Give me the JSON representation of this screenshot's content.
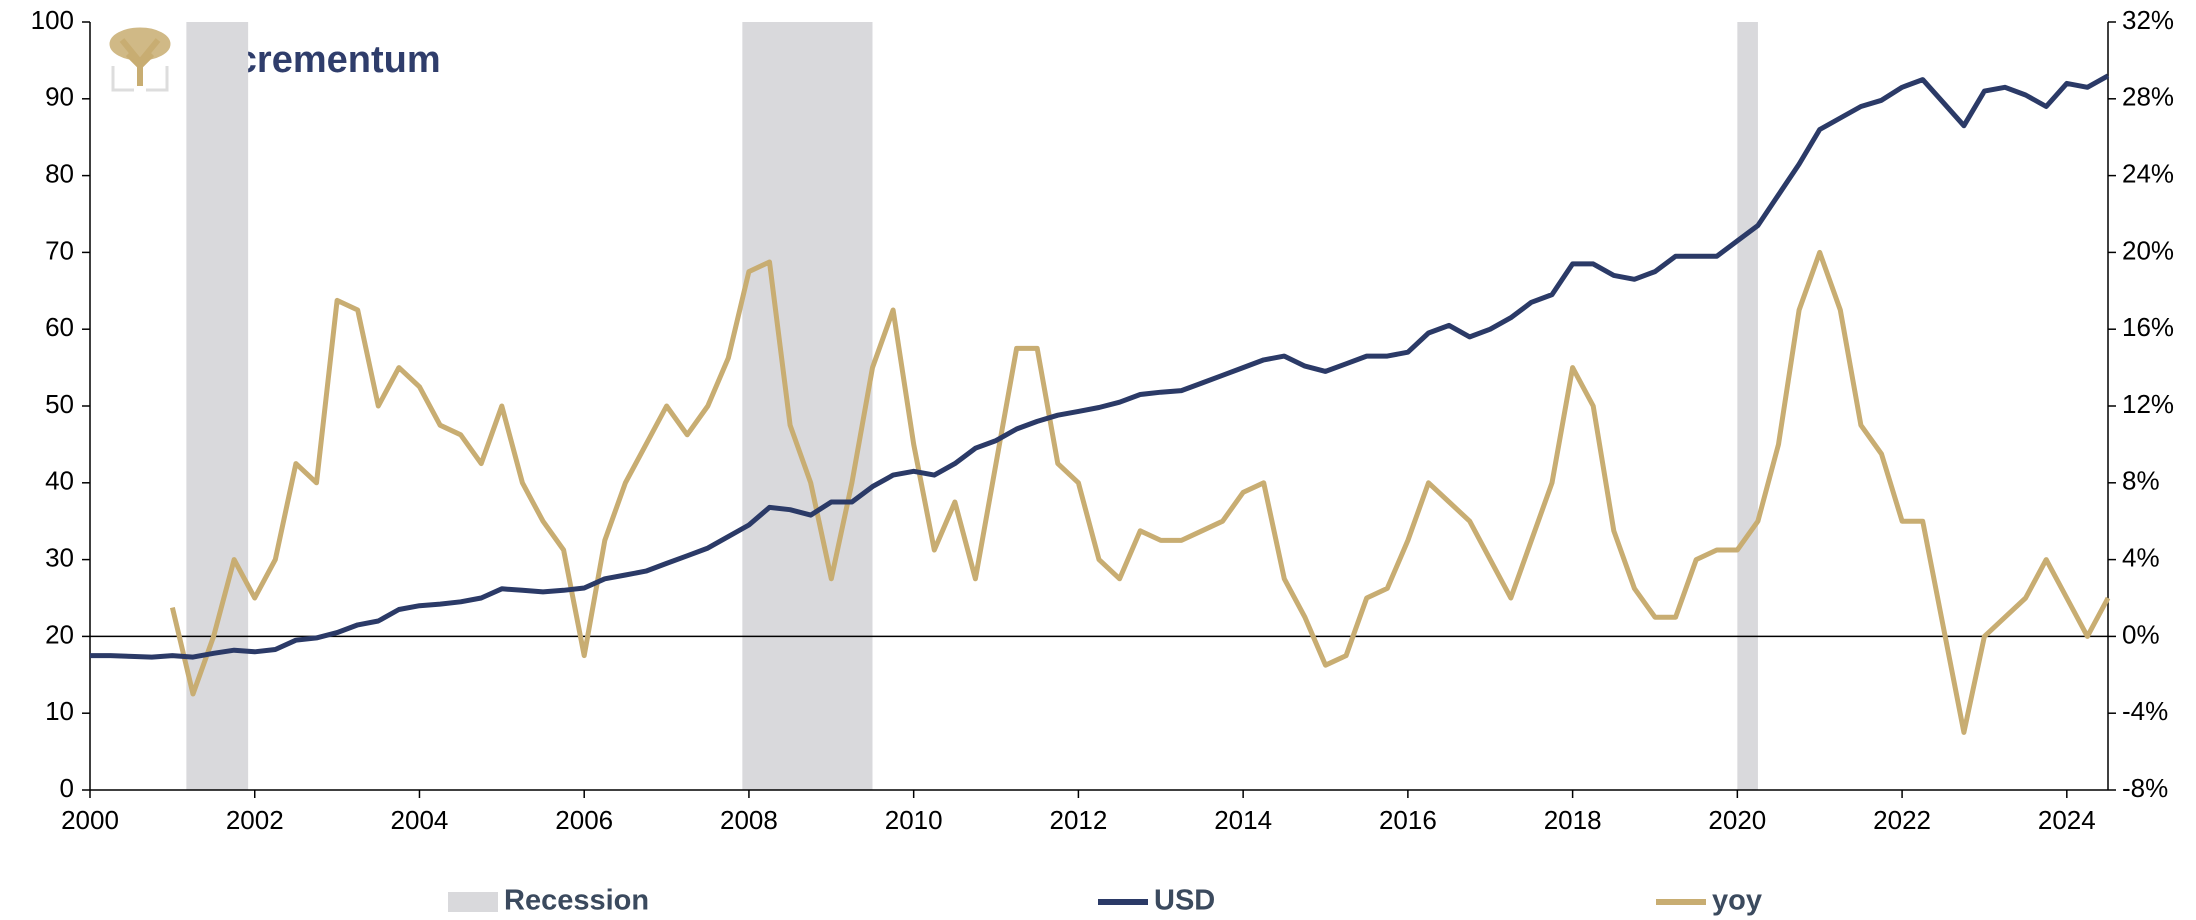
{
  "logo": "incrementum",
  "chart_data": {
    "type": "line",
    "xlim": [
      2000,
      2024.5
    ],
    "xticks": [
      2000,
      2002,
      2004,
      2006,
      2008,
      2010,
      2012,
      2014,
      2016,
      2018,
      2020,
      2022,
      2024
    ],
    "ylim": [
      0,
      100
    ],
    "yticks": [
      0,
      10,
      20,
      30,
      40,
      50,
      60,
      70,
      80,
      90,
      100
    ],
    "y2lim": [
      -8,
      32
    ],
    "y2ticks": [
      {
        "value": -8,
        "label": "-8%"
      },
      {
        "value": -4,
        "label": "-4%"
      },
      {
        "value": 0,
        "label": "0%"
      },
      {
        "value": 4,
        "label": "4%"
      },
      {
        "value": 8,
        "label": "8%"
      },
      {
        "value": 12,
        "label": "12%"
      },
      {
        "value": 16,
        "label": "16%"
      },
      {
        "value": 20,
        "label": "20%"
      },
      {
        "value": 24,
        "label": "24%"
      },
      {
        "value": 28,
        "label": "28%"
      },
      {
        "value": 32,
        "label": "32%"
      }
    ],
    "recession": {
      "name": "Recession",
      "color": "#d9d9dc",
      "periods": [
        [
          2001.17,
          2001.92
        ],
        [
          2007.92,
          2009.5
        ],
        [
          2020.0,
          2020.25
        ]
      ]
    },
    "series": [
      {
        "name": "USD",
        "color": "#2b3a67",
        "axis": "y",
        "x": [
          2000,
          2000.25,
          2000.5,
          2000.75,
          2001,
          2001.25,
          2001.5,
          2001.75,
          2002,
          2002.25,
          2002.5,
          2002.75,
          2003,
          2003.25,
          2003.5,
          2003.75,
          2004,
          2004.25,
          2004.5,
          2004.75,
          2005,
          2005.25,
          2005.5,
          2005.75,
          2006,
          2006.25,
          2006.5,
          2006.75,
          2007,
          2007.25,
          2007.5,
          2007.75,
          2008,
          2008.25,
          2008.5,
          2008.75,
          2009,
          2009.25,
          2009.5,
          2009.75,
          2010,
          2010.25,
          2010.5,
          2010.75,
          2011,
          2011.25,
          2011.5,
          2011.75,
          2012,
          2012.25,
          2012.5,
          2012.75,
          2013,
          2013.25,
          2013.5,
          2013.75,
          2014,
          2014.25,
          2014.5,
          2014.75,
          2015,
          2015.25,
          2015.5,
          2015.75,
          2016,
          2016.25,
          2016.5,
          2016.75,
          2017,
          2017.25,
          2017.5,
          2017.75,
          2018,
          2018.25,
          2018.5,
          2018.75,
          2019,
          2019.25,
          2019.5,
          2019.75,
          2020,
          2020.25,
          2020.5,
          2020.75,
          2021,
          2021.25,
          2021.5,
          2021.75,
          2022,
          2022.25,
          2022.5,
          2022.75,
          2023,
          2023.25,
          2023.5,
          2023.75,
          2024,
          2024.25,
          2024.5
        ],
        "values": [
          17.5,
          17.5,
          17.4,
          17.3,
          17.5,
          17.3,
          17.8,
          18.2,
          18.0,
          18.3,
          19.5,
          19.8,
          20.5,
          21.5,
          22.0,
          23.5,
          24.0,
          24.2,
          24.5,
          25.0,
          26.2,
          26.0,
          25.8,
          26.0,
          26.3,
          27.5,
          28.0,
          28.5,
          29.5,
          30.5,
          31.5,
          33.0,
          34.5,
          36.8,
          36.5,
          35.8,
          37.5,
          37.5,
          39.5,
          41.0,
          41.5,
          41.0,
          42.5,
          44.5,
          45.5,
          47.0,
          48.0,
          48.8,
          49.3,
          49.8,
          50.5,
          51.5,
          51.8,
          52.0,
          53.0,
          54.0,
          55.0,
          56.0,
          56.5,
          55.2,
          54.5,
          55.5,
          56.5,
          56.5,
          57.0,
          59.5,
          60.5,
          59.0,
          60.0,
          61.5,
          63.5,
          64.5,
          68.5,
          68.5,
          67.0,
          66.5,
          67.5,
          69.5,
          69.5,
          69.5,
          71.5,
          73.5,
          77.5,
          81.5,
          86.0,
          87.5,
          89.0,
          89.8,
          91.5,
          92.5,
          89.5,
          86.5,
          91.0,
          91.5,
          90.5,
          89.0,
          92.0,
          91.5,
          93.0
        ]
      },
      {
        "name": "yoy",
        "color": "#c8ad72",
        "axis": "y2",
        "x": [
          2001,
          2001.25,
          2001.5,
          2001.75,
          2002,
          2002.25,
          2002.5,
          2002.75,
          2003,
          2003.25,
          2003.5,
          2003.75,
          2004,
          2004.25,
          2004.5,
          2004.75,
          2005,
          2005.25,
          2005.5,
          2005.75,
          2006,
          2006.25,
          2006.5,
          2006.75,
          2007,
          2007.25,
          2007.5,
          2007.75,
          2008,
          2008.25,
          2008.5,
          2008.75,
          2009,
          2009.25,
          2009.5,
          2009.75,
          2010,
          2010.25,
          2010.5,
          2010.75,
          2011,
          2011.25,
          2011.5,
          2011.75,
          2012,
          2012.25,
          2012.5,
          2012.75,
          2013,
          2013.25,
          2013.5,
          2013.75,
          2014,
          2014.25,
          2014.5,
          2014.75,
          2015,
          2015.25,
          2015.5,
          2015.75,
          2016,
          2016.25,
          2016.5,
          2016.75,
          2017,
          2017.25,
          2017.5,
          2017.75,
          2018,
          2018.25,
          2018.5,
          2018.75,
          2019,
          2019.25,
          2019.5,
          2019.75,
          2020,
          2020.25,
          2020.5,
          2020.75,
          2021,
          2021.25,
          2021.5,
          2021.75,
          2022,
          2022.25,
          2022.5,
          2022.75,
          2023,
          2023.25,
          2023.5,
          2023.75,
          2024,
          2024.25,
          2024.5
        ],
        "values": [
          1.5,
          -3,
          0,
          4,
          2,
          4,
          9,
          8,
          17.5,
          17,
          12,
          14,
          13,
          11,
          10.5,
          9,
          12,
          8,
          6,
          4.5,
          -1,
          5,
          8,
          10,
          12,
          10.5,
          12,
          14.5,
          19,
          19.5,
          11,
          8,
          3,
          8,
          14,
          17,
          10,
          4.5,
          7,
          3,
          9,
          15,
          15,
          9,
          8,
          4,
          3,
          5.5,
          5,
          5,
          5.5,
          6,
          7.5,
          8,
          3,
          1,
          -1.5,
          -1,
          2,
          2.5,
          5,
          8,
          7,
          6,
          4,
          2,
          5,
          8,
          14,
          12,
          5.5,
          2.5,
          1,
          1,
          4,
          4.5,
          4.5,
          6,
          10,
          17,
          20,
          17,
          11,
          9.5,
          6,
          6,
          0.5,
          -5,
          0,
          1,
          2,
          4,
          2,
          0,
          2
        ]
      }
    ]
  }
}
